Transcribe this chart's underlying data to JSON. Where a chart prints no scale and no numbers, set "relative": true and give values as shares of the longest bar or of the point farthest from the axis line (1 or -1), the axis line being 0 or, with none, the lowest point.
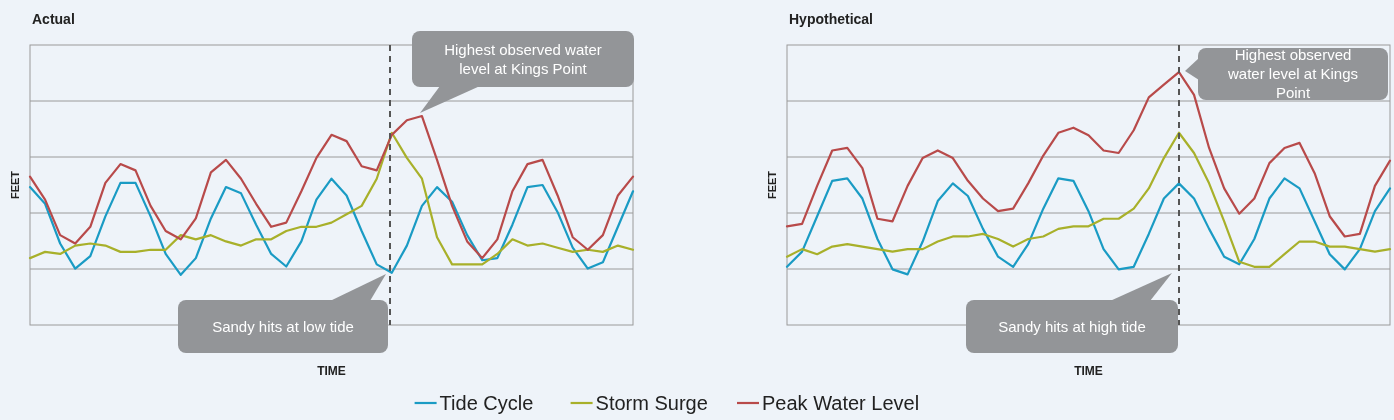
{
  "chart_data": [
    {
      "type": "line",
      "title": "Actual",
      "xlabel": "TIME",
      "ylabel": "FEET",
      "relative": true,
      "grid": true,
      "legend": "bottom",
      "categories": [
        null,
        null,
        null,
        null,
        null,
        null,
        null,
        null,
        null,
        null,
        null,
        null,
        null,
        null,
        null,
        null,
        null,
        null,
        null,
        null,
        null,
        null,
        null,
        null,
        null,
        null,
        null,
        null,
        null,
        null,
        null,
        null,
        null,
        null,
        null,
        null,
        null,
        null,
        null,
        null,
        null
      ],
      "series": [
        {
          "name": "Tide Cycle",
          "color": "#1a9bc4",
          "values": [
            0.66,
            0.58,
            0.39,
            0.27,
            0.33,
            0.52,
            0.68,
            0.68,
            0.52,
            0.34,
            0.24,
            0.32,
            0.51,
            0.66,
            0.63,
            0.48,
            0.34,
            0.28,
            0.4,
            0.6,
            0.7,
            0.62,
            0.45,
            0.29,
            0.25,
            0.38,
            0.57,
            0.66,
            0.59,
            0.43,
            0.31,
            0.32,
            0.48,
            0.66,
            0.67,
            0.54,
            0.37,
            0.27,
            0.3,
            0.47,
            0.64
          ]
        },
        {
          "name": "Storm Surge",
          "color": "#a8b02a",
          "values": [
            0.32,
            0.35,
            0.34,
            0.38,
            0.39,
            0.38,
            0.35,
            0.35,
            0.36,
            0.36,
            0.43,
            0.41,
            0.43,
            0.4,
            0.38,
            0.41,
            0.41,
            0.45,
            0.47,
            0.47,
            0.49,
            0.53,
            0.57,
            0.7,
            0.92,
            0.8,
            0.7,
            0.42,
            0.29,
            0.29,
            0.29,
            0.34,
            0.41,
            0.38,
            0.39,
            0.37,
            0.35,
            0.36,
            0.35,
            0.38,
            0.36
          ]
        },
        {
          "name": "Peak Water Level",
          "color": "#b84a4a",
          "values": [
            0.71,
            0.6,
            0.43,
            0.39,
            0.47,
            0.68,
            0.77,
            0.74,
            0.57,
            0.45,
            0.41,
            0.51,
            0.73,
            0.79,
            0.7,
            0.58,
            0.47,
            0.49,
            0.64,
            0.8,
            0.91,
            0.88,
            0.76,
            0.74,
            0.91,
            0.98,
            1.0,
            0.79,
            0.57,
            0.4,
            0.32,
            0.41,
            0.64,
            0.77,
            0.79,
            0.62,
            0.42,
            0.36,
            0.43,
            0.62,
            0.71
          ]
        }
      ],
      "annotations": [
        "Highest observed water level at Kings Point",
        "Sandy hits at low tide"
      ]
    },
    {
      "type": "line",
      "title": "Hypothetical",
      "xlabel": "TIME",
      "ylabel": "FEET",
      "relative": true,
      "grid": true,
      "categories": [
        null,
        null,
        null,
        null,
        null,
        null,
        null,
        null,
        null,
        null,
        null,
        null,
        null,
        null,
        null,
        null,
        null,
        null,
        null,
        null,
        null,
        null,
        null,
        null,
        null,
        null,
        null,
        null,
        null,
        null,
        null,
        null,
        null,
        null,
        null,
        null,
        null,
        null,
        null,
        null,
        null
      ],
      "series": [
        {
          "color": "#1a9bc4",
          "values": [
            0.23,
            0.29,
            0.43,
            0.57,
            0.58,
            0.5,
            0.34,
            0.22,
            0.2,
            0.33,
            0.49,
            0.56,
            0.51,
            0.38,
            0.27,
            0.23,
            0.32,
            0.46,
            0.58,
            0.57,
            0.45,
            0.3,
            0.22,
            0.23,
            0.36,
            0.5,
            0.56,
            0.5,
            0.38,
            0.27,
            0.24,
            0.34,
            0.5,
            0.58,
            0.54,
            0.41,
            0.28,
            0.22,
            0.3,
            0.45,
            0.54
          ]
        },
        {
          "color": "#a8b02a",
          "values": [
            0.27,
            0.3,
            0.28,
            0.31,
            0.32,
            0.31,
            0.3,
            0.29,
            0.3,
            0.3,
            0.33,
            0.35,
            0.35,
            0.36,
            0.34,
            0.31,
            0.34,
            0.35,
            0.38,
            0.39,
            0.39,
            0.42,
            0.42,
            0.46,
            0.54,
            0.66,
            0.76,
            0.68,
            0.56,
            0.41,
            0.25,
            0.23,
            0.23,
            0.28,
            0.33,
            0.33,
            0.31,
            0.31,
            0.3,
            0.29,
            0.3
          ]
        },
        {
          "color": "#b84a4a",
          "values": [
            0.39,
            0.4,
            0.55,
            0.69,
            0.7,
            0.62,
            0.42,
            0.41,
            0.55,
            0.66,
            0.69,
            0.66,
            0.57,
            0.5,
            0.45,
            0.46,
            0.56,
            0.67,
            0.76,
            0.78,
            0.75,
            0.69,
            0.68,
            0.77,
            0.9,
            0.95,
            1.0,
            0.91,
            0.7,
            0.54,
            0.44,
            0.5,
            0.64,
            0.7,
            0.72,
            0.6,
            0.43,
            0.35,
            0.36,
            0.55,
            0.65
          ]
        }
      ],
      "annotations": [
        "Highest observed water level at Kings Point",
        "Sandy hits at high tide"
      ]
    }
  ]
}
